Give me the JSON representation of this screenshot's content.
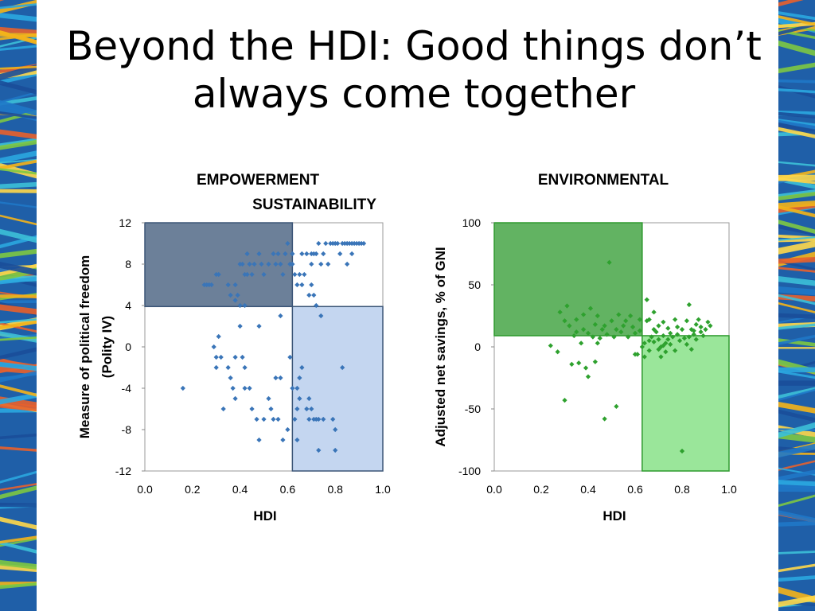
{
  "slide": {
    "title_line1": "Beyond the HDI: Good things don’t",
    "title_line2": "always come together"
  },
  "colors": {
    "band_stripes": [
      "#1f78c8",
      "#2ba8e0",
      "#f4b41a",
      "#e8612c",
      "#7ec843",
      "#1a4e9a",
      "#ffd84a",
      "#3cc0d8"
    ],
    "left_shade_upper": "#3b5577",
    "left_shade_lower": "#9dbae6",
    "left_points": "#3a75b8",
    "right_shade_upper": "#2e9a2e",
    "right_shade_lower": "#57d657",
    "right_points": "#2ea12e"
  },
  "chart_data": [
    {
      "type": "scatter",
      "title_line1": "EMPOWERMENT",
      "title_line2": "SUSTAINABILITY",
      "xlabel": "HDI",
      "ylabel_line1": "Measure of political freedom",
      "ylabel_line2": "(Polity IV)",
      "xlim": [
        0.0,
        1.0
      ],
      "ylim": [
        -12,
        12
      ],
      "x_ticks": [
        "0.0",
        "0.2",
        "0.4",
        "0.6",
        "0.8",
        "1.0"
      ],
      "y_ticks": [
        "12",
        "8",
        "4",
        "0",
        "-4",
        "-8",
        "-12"
      ],
      "y_tick_values": [
        12,
        8,
        4,
        0,
        -4,
        -8,
        -12
      ],
      "x_tick_values": [
        0.0,
        0.2,
        0.4,
        0.6,
        0.8,
        1.0
      ],
      "threshold_x": 0.62,
      "threshold_y": 3.9,
      "shaded_regions": [
        "x<0.62 and y>3.9 (dark)",
        "x>0.62 and y<3.9 (light)"
      ],
      "points": [
        [
          0.27,
          6
        ],
        [
          0.26,
          6
        ],
        [
          0.25,
          6
        ],
        [
          0.28,
          6
        ],
        [
          0.3,
          7
        ],
        [
          0.31,
          7
        ],
        [
          0.35,
          6
        ],
        [
          0.36,
          5
        ],
        [
          0.38,
          6
        ],
        [
          0.39,
          5
        ],
        [
          0.4,
          8
        ],
        [
          0.41,
          8
        ],
        [
          0.42,
          7
        ],
        [
          0.43,
          9
        ],
        [
          0.43,
          7
        ],
        [
          0.44,
          8
        ],
        [
          0.45,
          7
        ],
        [
          0.46,
          8
        ],
        [
          0.48,
          9
        ],
        [
          0.49,
          8
        ],
        [
          0.5,
          7
        ],
        [
          0.52,
          8
        ],
        [
          0.54,
          9
        ],
        [
          0.55,
          8
        ],
        [
          0.56,
          9
        ],
        [
          0.57,
          8
        ],
        [
          0.58,
          7
        ],
        [
          0.59,
          9
        ],
        [
          0.6,
          10
        ],
        [
          0.61,
          8
        ],
        [
          0.62,
          8
        ],
        [
          0.63,
          7
        ],
        [
          0.64,
          6
        ],
        [
          0.65,
          7
        ],
        [
          0.66,
          6
        ],
        [
          0.67,
          7
        ],
        [
          0.68,
          9
        ],
        [
          0.69,
          5
        ],
        [
          0.7,
          6
        ],
        [
          0.7,
          9
        ],
        [
          0.71,
          5
        ],
        [
          0.72,
          9
        ],
        [
          0.73,
          10
        ],
        [
          0.74,
          8
        ],
        [
          0.75,
          9
        ],
        [
          0.76,
          10
        ],
        [
          0.77,
          8
        ],
        [
          0.78,
          10
        ],
        [
          0.79,
          10
        ],
        [
          0.8,
          10
        ],
        [
          0.81,
          10
        ],
        [
          0.82,
          9
        ],
        [
          0.83,
          10
        ],
        [
          0.84,
          10
        ],
        [
          0.85,
          10
        ],
        [
          0.86,
          10
        ],
        [
          0.87,
          10
        ],
        [
          0.88,
          10
        ],
        [
          0.89,
          10
        ],
        [
          0.9,
          10
        ],
        [
          0.91,
          10
        ],
        [
          0.92,
          10
        ],
        [
          0.85,
          8
        ],
        [
          0.87,
          9
        ],
        [
          0.71,
          9
        ],
        [
          0.7,
          8
        ],
        [
          0.66,
          9
        ],
        [
          0.62,
          9
        ],
        [
          0.4,
          4
        ],
        [
          0.42,
          4
        ],
        [
          0.38,
          4.5
        ],
        [
          0.72,
          4
        ],
        [
          0.74,
          3
        ],
        [
          0.57,
          3
        ],
        [
          0.16,
          -4
        ],
        [
          0.29,
          0
        ],
        [
          0.3,
          -1
        ],
        [
          0.31,
          1
        ],
        [
          0.3,
          -2
        ],
        [
          0.32,
          -1
        ],
        [
          0.33,
          -6
        ],
        [
          0.35,
          -2
        ],
        [
          0.36,
          -3
        ],
        [
          0.37,
          -4
        ],
        [
          0.38,
          -5
        ],
        [
          0.38,
          -1
        ],
        [
          0.4,
          2
        ],
        [
          0.41,
          -1
        ],
        [
          0.42,
          -2
        ],
        [
          0.42,
          -4
        ],
        [
          0.44,
          -4
        ],
        [
          0.45,
          -6
        ],
        [
          0.47,
          -7
        ],
        [
          0.48,
          2
        ],
        [
          0.48,
          -9
        ],
        [
          0.5,
          -7
        ],
        [
          0.52,
          -5
        ],
        [
          0.53,
          -6
        ],
        [
          0.54,
          -7
        ],
        [
          0.55,
          -3
        ],
        [
          0.56,
          -7
        ],
        [
          0.57,
          -3
        ],
        [
          0.58,
          -9
        ],
        [
          0.6,
          -8
        ],
        [
          0.61,
          -1
        ],
        [
          0.62,
          -4
        ],
        [
          0.63,
          -7
        ],
        [
          0.64,
          -9
        ],
        [
          0.64,
          -4
        ],
        [
          0.65,
          -3
        ],
        [
          0.65,
          -5
        ],
        [
          0.66,
          -2
        ],
        [
          0.68,
          -6
        ],
        [
          0.69,
          -7
        ],
        [
          0.7,
          -6
        ],
        [
          0.71,
          -7
        ],
        [
          0.73,
          -7
        ],
        [
          0.73,
          -10
        ],
        [
          0.75,
          -7
        ],
        [
          0.79,
          -7
        ],
        [
          0.8,
          -10
        ],
        [
          0.8,
          -8
        ],
        [
          0.83,
          -2
        ],
        [
          0.64,
          -6
        ],
        [
          0.72,
          -7
        ],
        [
          0.69,
          -5
        ]
      ]
    },
    {
      "type": "scatter",
      "title_line1": "ENVIRONMENTAL",
      "xlabel": "HDI",
      "ylabel": "Adjusted net savings, % of GNI",
      "xlim": [
        0.0,
        1.0
      ],
      "ylim": [
        -100,
        100
      ],
      "x_ticks": [
        "0.0",
        "0.2",
        "0.4",
        "0.6",
        "0.8",
        "1.0"
      ],
      "y_ticks": [
        "100",
        "50",
        "0",
        "-50",
        "-100"
      ],
      "y_tick_values": [
        100,
        50,
        0,
        -50,
        -100
      ],
      "x_tick_values": [
        0.0,
        0.2,
        0.4,
        0.6,
        0.8,
        1.0
      ],
      "threshold_x": 0.63,
      "threshold_y": 9,
      "shaded_regions": [
        "x<0.63 and y>9 (dark)",
        "x>0.63 and y<9 (light)"
      ],
      "points": [
        [
          0.24,
          1
        ],
        [
          0.27,
          -4
        ],
        [
          0.28,
          28
        ],
        [
          0.3,
          -43
        ],
        [
          0.3,
          21
        ],
        [
          0.31,
          33
        ],
        [
          0.32,
          17
        ],
        [
          0.33,
          -14
        ],
        [
          0.34,
          9
        ],
        [
          0.35,
          12
        ],
        [
          0.35,
          22
        ],
        [
          0.36,
          -13
        ],
        [
          0.37,
          3
        ],
        [
          0.38,
          14
        ],
        [
          0.38,
          26
        ],
        [
          0.39,
          -17
        ],
        [
          0.4,
          -24
        ],
        [
          0.4,
          11
        ],
        [
          0.41,
          31
        ],
        [
          0.42,
          8
        ],
        [
          0.43,
          -12
        ],
        [
          0.43,
          18
        ],
        [
          0.44,
          3
        ],
        [
          0.44,
          25
        ],
        [
          0.45,
          7
        ],
        [
          0.46,
          14
        ],
        [
          0.47,
          17
        ],
        [
          0.47,
          -58
        ],
        [
          0.48,
          10
        ],
        [
          0.49,
          68
        ],
        [
          0.5,
          21
        ],
        [
          0.51,
          8
        ],
        [
          0.52,
          -48
        ],
        [
          0.52,
          14
        ],
        [
          0.53,
          26
        ],
        [
          0.54,
          12
        ],
        [
          0.55,
          17
        ],
        [
          0.56,
          21
        ],
        [
          0.57,
          8
        ],
        [
          0.58,
          25
        ],
        [
          0.59,
          16
        ],
        [
          0.6,
          -6
        ],
        [
          0.6,
          11
        ],
        [
          0.61,
          -6
        ],
        [
          0.62,
          22
        ],
        [
          0.62,
          13
        ],
        [
          0.63,
          0
        ],
        [
          0.64,
          3
        ],
        [
          0.64,
          -8
        ],
        [
          0.65,
          38
        ],
        [
          0.65,
          21
        ],
        [
          0.66,
          5
        ],
        [
          0.66,
          -3
        ],
        [
          0.67,
          8
        ],
        [
          0.68,
          4
        ],
        [
          0.68,
          14
        ],
        [
          0.69,
          12
        ],
        [
          0.7,
          -2
        ],
        [
          0.7,
          6
        ],
        [
          0.71,
          0
        ],
        [
          0.71,
          -8
        ],
        [
          0.72,
          20
        ],
        [
          0.72,
          9
        ],
        [
          0.73,
          3
        ],
        [
          0.73,
          -4
        ],
        [
          0.74,
          15
        ],
        [
          0.75,
          11
        ],
        [
          0.75,
          2
        ],
        [
          0.76,
          8
        ],
        [
          0.77,
          -3
        ],
        [
          0.77,
          22
        ],
        [
          0.78,
          10
        ],
        [
          0.79,
          5
        ],
        [
          0.8,
          14
        ],
        [
          0.8,
          -84
        ],
        [
          0.81,
          7
        ],
        [
          0.82,
          21
        ],
        [
          0.82,
          2
        ],
        [
          0.83,
          34
        ],
        [
          0.84,
          14
        ],
        [
          0.84,
          -2
        ],
        [
          0.85,
          10
        ],
        [
          0.86,
          18
        ],
        [
          0.86,
          6
        ],
        [
          0.87,
          22
        ],
        [
          0.88,
          16
        ],
        [
          0.88,
          12
        ],
        [
          0.89,
          9
        ],
        [
          0.9,
          14
        ],
        [
          0.91,
          20
        ],
        [
          0.92,
          17
        ],
        [
          0.85,
          13
        ],
        [
          0.83,
          8
        ],
        [
          0.78,
          16
        ],
        [
          0.74,
          6
        ],
        [
          0.68,
          28
        ],
        [
          0.66,
          22
        ],
        [
          0.7,
          17
        ],
        [
          0.72,
          1
        ]
      ]
    }
  ]
}
